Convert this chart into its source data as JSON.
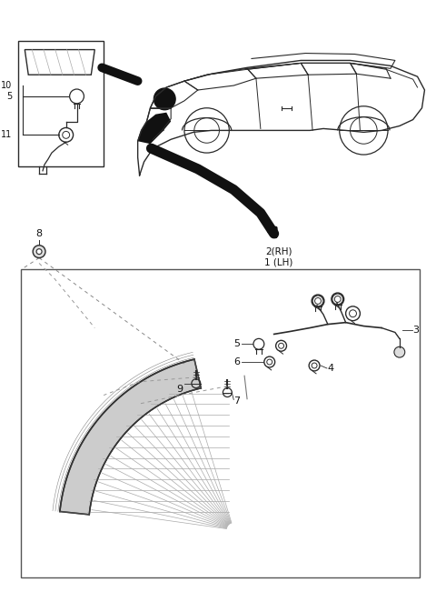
{
  "bg_color": "#ffffff",
  "fig_width": 4.8,
  "fig_height": 6.51,
  "dpi": 100,
  "line_color": "#2a2a2a",
  "text_color": "#111111",
  "gray": "#888888",
  "light_gray": "#cccccc",
  "dark": "#111111"
}
